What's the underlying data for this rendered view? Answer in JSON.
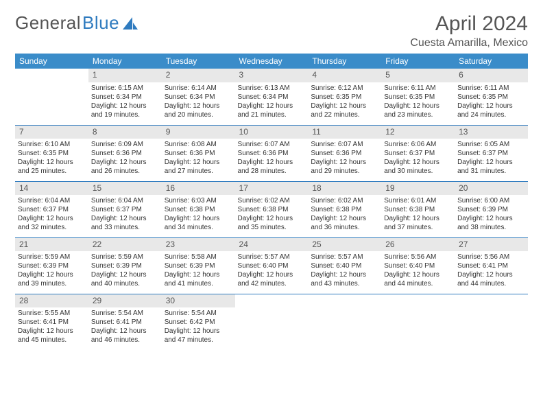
{
  "logo": {
    "text1": "General",
    "text2": "Blue"
  },
  "title": "April 2024",
  "subtitle": "Cuesta Amarilla, Mexico",
  "colors": {
    "header_bg": "#3a8cc9",
    "header_text": "#ffffff",
    "daynum_bg": "#e8e8e8",
    "rule": "#2f7bbf",
    "text": "#333333",
    "title_text": "#555555"
  },
  "fontsize": {
    "title": 30,
    "subtitle": 16,
    "dayheader": 12,
    "daynum": 12,
    "body": 10
  },
  "day_headers": [
    "Sunday",
    "Monday",
    "Tuesday",
    "Wednesday",
    "Thursday",
    "Friday",
    "Saturday"
  ],
  "weeks": [
    [
      null,
      {
        "n": "1",
        "sunrise": "Sunrise: 6:15 AM",
        "sunset": "Sunset: 6:34 PM",
        "daylight": "Daylight: 12 hours and 19 minutes."
      },
      {
        "n": "2",
        "sunrise": "Sunrise: 6:14 AM",
        "sunset": "Sunset: 6:34 PM",
        "daylight": "Daylight: 12 hours and 20 minutes."
      },
      {
        "n": "3",
        "sunrise": "Sunrise: 6:13 AM",
        "sunset": "Sunset: 6:34 PM",
        "daylight": "Daylight: 12 hours and 21 minutes."
      },
      {
        "n": "4",
        "sunrise": "Sunrise: 6:12 AM",
        "sunset": "Sunset: 6:35 PM",
        "daylight": "Daylight: 12 hours and 22 minutes."
      },
      {
        "n": "5",
        "sunrise": "Sunrise: 6:11 AM",
        "sunset": "Sunset: 6:35 PM",
        "daylight": "Daylight: 12 hours and 23 minutes."
      },
      {
        "n": "6",
        "sunrise": "Sunrise: 6:11 AM",
        "sunset": "Sunset: 6:35 PM",
        "daylight": "Daylight: 12 hours and 24 minutes."
      }
    ],
    [
      {
        "n": "7",
        "sunrise": "Sunrise: 6:10 AM",
        "sunset": "Sunset: 6:35 PM",
        "daylight": "Daylight: 12 hours and 25 minutes."
      },
      {
        "n": "8",
        "sunrise": "Sunrise: 6:09 AM",
        "sunset": "Sunset: 6:36 PM",
        "daylight": "Daylight: 12 hours and 26 minutes."
      },
      {
        "n": "9",
        "sunrise": "Sunrise: 6:08 AM",
        "sunset": "Sunset: 6:36 PM",
        "daylight": "Daylight: 12 hours and 27 minutes."
      },
      {
        "n": "10",
        "sunrise": "Sunrise: 6:07 AM",
        "sunset": "Sunset: 6:36 PM",
        "daylight": "Daylight: 12 hours and 28 minutes."
      },
      {
        "n": "11",
        "sunrise": "Sunrise: 6:07 AM",
        "sunset": "Sunset: 6:36 PM",
        "daylight": "Daylight: 12 hours and 29 minutes."
      },
      {
        "n": "12",
        "sunrise": "Sunrise: 6:06 AM",
        "sunset": "Sunset: 6:37 PM",
        "daylight": "Daylight: 12 hours and 30 minutes."
      },
      {
        "n": "13",
        "sunrise": "Sunrise: 6:05 AM",
        "sunset": "Sunset: 6:37 PM",
        "daylight": "Daylight: 12 hours and 31 minutes."
      }
    ],
    [
      {
        "n": "14",
        "sunrise": "Sunrise: 6:04 AM",
        "sunset": "Sunset: 6:37 PM",
        "daylight": "Daylight: 12 hours and 32 minutes."
      },
      {
        "n": "15",
        "sunrise": "Sunrise: 6:04 AM",
        "sunset": "Sunset: 6:37 PM",
        "daylight": "Daylight: 12 hours and 33 minutes."
      },
      {
        "n": "16",
        "sunrise": "Sunrise: 6:03 AM",
        "sunset": "Sunset: 6:38 PM",
        "daylight": "Daylight: 12 hours and 34 minutes."
      },
      {
        "n": "17",
        "sunrise": "Sunrise: 6:02 AM",
        "sunset": "Sunset: 6:38 PM",
        "daylight": "Daylight: 12 hours and 35 minutes."
      },
      {
        "n": "18",
        "sunrise": "Sunrise: 6:02 AM",
        "sunset": "Sunset: 6:38 PM",
        "daylight": "Daylight: 12 hours and 36 minutes."
      },
      {
        "n": "19",
        "sunrise": "Sunrise: 6:01 AM",
        "sunset": "Sunset: 6:38 PM",
        "daylight": "Daylight: 12 hours and 37 minutes."
      },
      {
        "n": "20",
        "sunrise": "Sunrise: 6:00 AM",
        "sunset": "Sunset: 6:39 PM",
        "daylight": "Daylight: 12 hours and 38 minutes."
      }
    ],
    [
      {
        "n": "21",
        "sunrise": "Sunrise: 5:59 AM",
        "sunset": "Sunset: 6:39 PM",
        "daylight": "Daylight: 12 hours and 39 minutes."
      },
      {
        "n": "22",
        "sunrise": "Sunrise: 5:59 AM",
        "sunset": "Sunset: 6:39 PM",
        "daylight": "Daylight: 12 hours and 40 minutes."
      },
      {
        "n": "23",
        "sunrise": "Sunrise: 5:58 AM",
        "sunset": "Sunset: 6:39 PM",
        "daylight": "Daylight: 12 hours and 41 minutes."
      },
      {
        "n": "24",
        "sunrise": "Sunrise: 5:57 AM",
        "sunset": "Sunset: 6:40 PM",
        "daylight": "Daylight: 12 hours and 42 minutes."
      },
      {
        "n": "25",
        "sunrise": "Sunrise: 5:57 AM",
        "sunset": "Sunset: 6:40 PM",
        "daylight": "Daylight: 12 hours and 43 minutes."
      },
      {
        "n": "26",
        "sunrise": "Sunrise: 5:56 AM",
        "sunset": "Sunset: 6:40 PM",
        "daylight": "Daylight: 12 hours and 44 minutes."
      },
      {
        "n": "27",
        "sunrise": "Sunrise: 5:56 AM",
        "sunset": "Sunset: 6:41 PM",
        "daylight": "Daylight: 12 hours and 44 minutes."
      }
    ],
    [
      {
        "n": "28",
        "sunrise": "Sunrise: 5:55 AM",
        "sunset": "Sunset: 6:41 PM",
        "daylight": "Daylight: 12 hours and 45 minutes."
      },
      {
        "n": "29",
        "sunrise": "Sunrise: 5:54 AM",
        "sunset": "Sunset: 6:41 PM",
        "daylight": "Daylight: 12 hours and 46 minutes."
      },
      {
        "n": "30",
        "sunrise": "Sunrise: 5:54 AM",
        "sunset": "Sunset: 6:42 PM",
        "daylight": "Daylight: 12 hours and 47 minutes."
      },
      null,
      null,
      null,
      null
    ]
  ]
}
